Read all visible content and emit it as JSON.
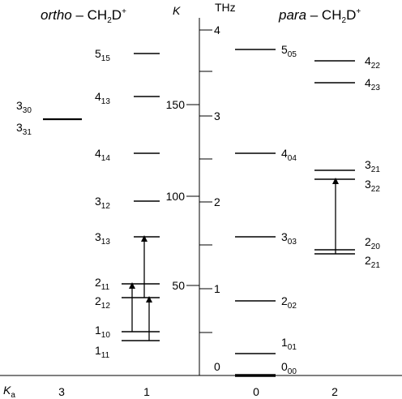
{
  "header": {
    "ortho": {
      "italic": "ortho",
      "text": " – CH",
      "sub": "2",
      "mid": "D",
      "sup": "+"
    },
    "para": {
      "italic": "para",
      "text": " – CH",
      "sub": "2",
      "mid": "D",
      "sup": "+"
    }
  },
  "axis": {
    "k_label": "K",
    "thz_label": "THz",
    "k_ticks": [
      "50",
      "100",
      "150"
    ],
    "thz_ticks": [
      "0",
      "1",
      "2",
      "3",
      "4"
    ],
    "ka_label": "K",
    "ka_sub": "a",
    "ka_values": [
      "3",
      "1",
      "0",
      "2"
    ]
  },
  "levels": [
    {
      "j": "5",
      "sub": "15"
    },
    {
      "j": "4",
      "sub": "13"
    },
    {
      "j": "4",
      "sub": "14"
    },
    {
      "j": "3",
      "sub": "12"
    },
    {
      "j": "3",
      "sub": "13"
    },
    {
      "j": "2",
      "sub": "11"
    },
    {
      "j": "2",
      "sub": "12"
    },
    {
      "j": "1",
      "sub": "10"
    },
    {
      "j": "1",
      "sub": "11"
    },
    {
      "j": "3",
      "sub": "30"
    },
    {
      "j": "3",
      "sub": "31"
    },
    {
      "j": "5",
      "sub": "05"
    },
    {
      "j": "4",
      "sub": "04"
    },
    {
      "j": "3",
      "sub": "03"
    },
    {
      "j": "2",
      "sub": "02"
    },
    {
      "j": "1",
      "sub": "01"
    },
    {
      "j": "0",
      "sub": "00"
    },
    {
      "j": "4",
      "sub": "22"
    },
    {
      "j": "4",
      "sub": "23"
    },
    {
      "j": "3",
      "sub": "21"
    },
    {
      "j": "3",
      "sub": "22"
    },
    {
      "j": "2",
      "sub": "20"
    },
    {
      "j": "2",
      "sub": "21"
    }
  ]
}
